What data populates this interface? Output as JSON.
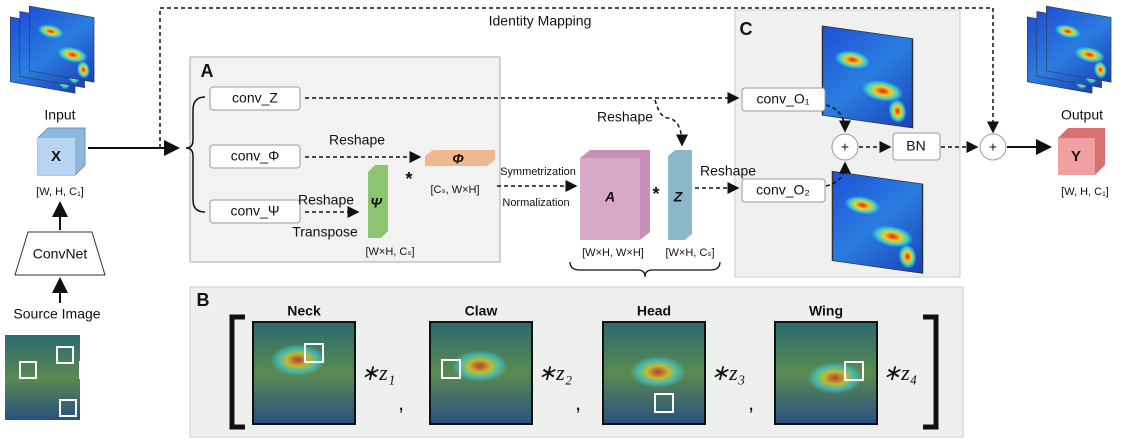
{
  "identity_mapping": "Identity Mapping",
  "panels": {
    "a": "A",
    "b": "B",
    "c": "C"
  },
  "input": {
    "label": "Input",
    "symbol": "X",
    "shape": "[W, H, C₁]"
  },
  "convnet": "ConvNet",
  "source_image": "Source Image",
  "branches": {
    "z": "conv_Z",
    "phi": "conv_Φ",
    "psi": "conv_Ψ"
  },
  "phi_path": {
    "reshape": "Reshape",
    "symbol": "Φ",
    "shape": "[Cₛ, W×H]",
    "op": "*"
  },
  "psi_path": {
    "reshape": "Reshape",
    "transpose": "Transpose",
    "symbol": "Ψ",
    "shape": "[W×H, Cₛ]"
  },
  "symmetrization": "Symmetrization",
  "normalization": "Normalization",
  "affinity": {
    "symbol": "A",
    "shape": "[W×H, W×H]",
    "op": "*"
  },
  "z_matrix": {
    "symbol": "Z",
    "shape": "[W×H, Cₛ]",
    "reshape_top": "Reshape",
    "reshape_right": "Reshape"
  },
  "outputs_conv": {
    "o1": "conv_O₁",
    "o2": "conv_O₂"
  },
  "plus": "+",
  "bn": "BN",
  "output": {
    "label": "Output",
    "symbol": "Y",
    "shape": "[W, H, C₁]"
  },
  "parts": [
    {
      "name": "Neck",
      "coef": "∗z₁"
    },
    {
      "name": "Claw",
      "coef": "∗z₂"
    },
    {
      "name": "Head",
      "coef": "∗z₃"
    },
    {
      "name": "Wing",
      "coef": "∗z₄"
    }
  ],
  "separator": ","
}
